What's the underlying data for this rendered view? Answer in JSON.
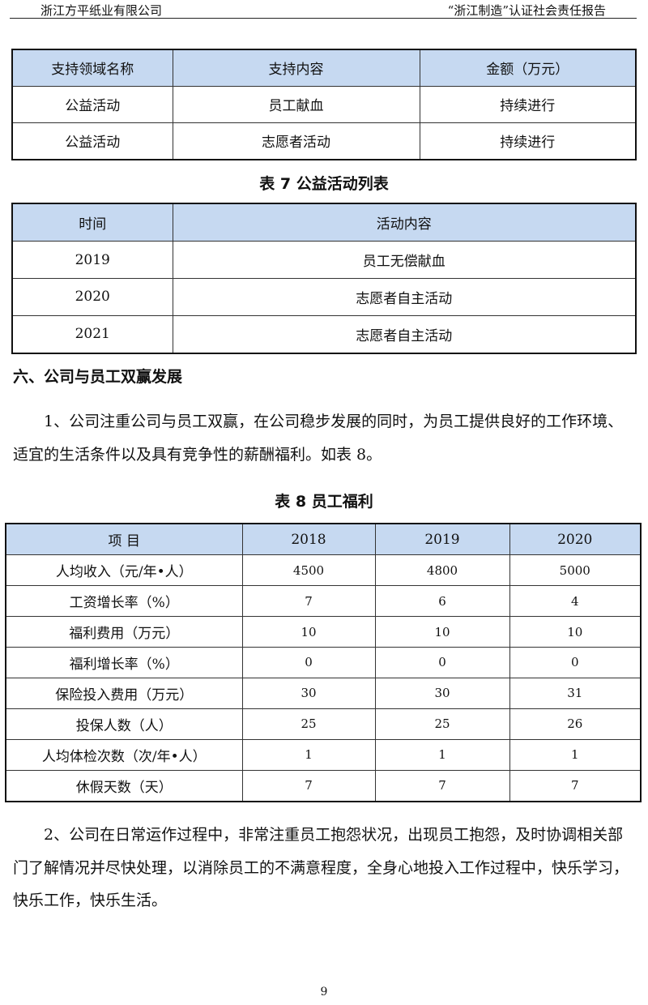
{
  "header": {
    "left": "浙江方平纸业有限公司",
    "right": "“浙江制造”认证社会责任报告"
  },
  "table_support": {
    "headers": [
      "支持领域名称",
      "支持内容",
      "金额（万元）"
    ],
    "rows": [
      [
        "公益活动",
        "员工献血",
        "持续进行"
      ],
      [
        "公益活动",
        "志愿者活动",
        "持续进行"
      ]
    ]
  },
  "table7": {
    "caption": "表 7 公益活动列表",
    "headers": [
      "时间",
      "活动内容"
    ],
    "rows": [
      [
        "2019",
        "员工无偿献血"
      ],
      [
        "2020",
        "志愿者自主活动"
      ],
      [
        "2021",
        "志愿者自主活动"
      ]
    ]
  },
  "section_heading": "六、公司与员工双赢发展",
  "para1": "1、公司注重公司与员工双赢，在公司稳步发展的同时，为员工提供良好的工作环境、适宜的生活条件以及具有竞争性的薪酬福利。如表 8。",
  "table8": {
    "caption": "表 8 员工福利",
    "headers": [
      "项 目",
      "2018",
      "2019",
      "2020"
    ],
    "rows": [
      [
        "人均收入（元/年•人）",
        "4500",
        "4800",
        "5000"
      ],
      [
        "工资增长率（%）",
        "7",
        "6",
        "4"
      ],
      [
        "福利费用（万元）",
        "10",
        "10",
        "10"
      ],
      [
        "福利增长率（%）",
        "0",
        "0",
        "0"
      ],
      [
        "保险投入费用（万元）",
        "30",
        "30",
        "31"
      ],
      [
        "投保人数（人）",
        "25",
        "25",
        "26"
      ],
      [
        "人均体检次数（次/年•人）",
        "1",
        "1",
        "1"
      ],
      [
        "休假天数（天）",
        "7",
        "7",
        "7"
      ]
    ]
  },
  "para2": "2、公司在日常运作过程中，非常注重员工抱怨状况，出现员工抱怨，及时协调相关部门了解情况并尽快处理，以消除员工的不满意程度，全身心地投入工作过程中，快乐学习，快乐工作，快乐生活。",
  "page_number": "9",
  "colors": {
    "table_header": "#c6d9f1"
  }
}
